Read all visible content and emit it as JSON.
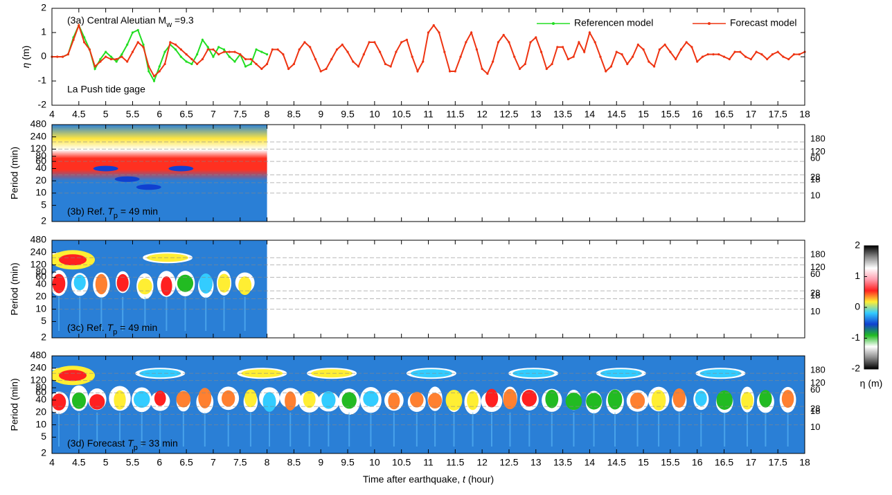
{
  "chart_data": [
    {
      "type": "line",
      "annotation_parts": [
        "(3a) Central Aleutian  M",
        "w",
        " =9.3"
      ],
      "annotation2": "La Push tide gage",
      "ylabel_parts": [
        "η",
        " (m)"
      ],
      "xlim": [
        4,
        18
      ],
      "xticks": [
        4,
        4.5,
        5,
        5.5,
        6,
        6.5,
        7,
        7.5,
        8,
        8.5,
        9,
        9.5,
        10,
        10.5,
        11,
        11.5,
        12,
        12.5,
        13,
        13.5,
        14,
        14.5,
        15,
        15.5,
        16,
        16.5,
        17,
        17.5,
        18
      ],
      "show_xtick_labels": true,
      "ylim": [
        -2,
        2
      ],
      "yticks": [
        -2,
        -1,
        0,
        1,
        2
      ],
      "legend": "upper right",
      "series": [
        {
          "name": "Referencen model",
          "color": "#22dd22",
          "x": [
            4,
            4.1,
            4.2,
            4.3,
            4.4,
            4.5,
            4.6,
            4.7,
            4.8,
            4.9,
            5,
            5.1,
            5.2,
            5.3,
            5.4,
            5.5,
            5.6,
            5.7,
            5.8,
            5.9,
            6,
            6.1,
            6.2,
            6.3,
            6.4,
            6.5,
            6.6,
            6.7,
            6.8,
            6.9,
            7,
            7.1,
            7.2,
            7.3,
            7.4,
            7.5,
            7.6,
            7.7,
            7.8,
            7.9,
            8
          ],
          "values": [
            0,
            0,
            0,
            0.1,
            0.8,
            1.3,
            0.8,
            0.3,
            -0.5,
            -0.1,
            0.2,
            0,
            -0.2,
            0.1,
            0.5,
            1,
            1.1,
            0.5,
            -0.6,
            -1,
            -0.4,
            0.2,
            0.5,
            0.3,
            0,
            -0.2,
            -0.3,
            0.1,
            0.7,
            0.4,
            0,
            0.4,
            0.3,
            0,
            -0.2,
            0.1,
            -0.4,
            -0.3,
            0.3,
            0.2,
            0.1
          ]
        },
        {
          "name": "Forecast model",
          "color": "#ee3311",
          "x": [
            4,
            4.1,
            4.2,
            4.3,
            4.4,
            4.5,
            4.6,
            4.7,
            4.8,
            4.9,
            5,
            5.1,
            5.2,
            5.3,
            5.4,
            5.5,
            5.6,
            5.7,
            5.8,
            5.9,
            6,
            6.1,
            6.2,
            6.3,
            6.4,
            6.5,
            6.6,
            6.7,
            6.8,
            6.9,
            7,
            7.1,
            7.2,
            7.3,
            7.4,
            7.5,
            7.6,
            7.7,
            7.8,
            7.9,
            8,
            8.1,
            8.2,
            8.3,
            8.4,
            8.5,
            8.6,
            8.7,
            8.8,
            8.9,
            9,
            9.1,
            9.2,
            9.3,
            9.4,
            9.5,
            9.6,
            9.7,
            9.8,
            9.9,
            10,
            10.1,
            10.2,
            10.3,
            10.4,
            10.5,
            10.6,
            10.7,
            10.8,
            10.9,
            11,
            11.1,
            11.2,
            11.3,
            11.4,
            11.5,
            11.6,
            11.7,
            11.8,
            11.9,
            12,
            12.1,
            12.2,
            12.3,
            12.4,
            12.5,
            12.6,
            12.7,
            12.8,
            12.9,
            13,
            13.1,
            13.2,
            13.3,
            13.4,
            13.5,
            13.6,
            13.7,
            13.8,
            13.9,
            14,
            14.1,
            14.2,
            14.3,
            14.4,
            14.5,
            14.6,
            14.7,
            14.8,
            14.9,
            15,
            15.1,
            15.2,
            15.3,
            15.4,
            15.5,
            15.6,
            15.7,
            15.8,
            15.9,
            16,
            16.1,
            16.2,
            16.3,
            16.4,
            16.5,
            16.6,
            16.7,
            16.8,
            16.9,
            17,
            17.1,
            17.2,
            17.3,
            17.4,
            17.5,
            17.6,
            17.7,
            17.8,
            17.9,
            18
          ],
          "values": [
            0,
            0,
            0,
            0.1,
            0.7,
            1.3,
            0.6,
            0.3,
            -0.4,
            -0.2,
            0,
            -0.1,
            -0.1,
            0,
            -0.2,
            0.2,
            0.6,
            0.4,
            -0.4,
            -0.8,
            -0.6,
            -0.3,
            0.6,
            0.5,
            0.3,
            0.1,
            -0.1,
            -0.3,
            -0.1,
            0.3,
            0.3,
            0.1,
            0.2,
            0.2,
            0.2,
            0.1,
            -0.1,
            -0.1,
            -0.3,
            -0.5,
            -0.3,
            0.3,
            0.3,
            0.1,
            -0.5,
            -0.3,
            0.3,
            0.6,
            0.4,
            -0.1,
            -0.6,
            -0.5,
            -0.1,
            0.3,
            0.5,
            0.2,
            -0.2,
            -0.4,
            0.1,
            0.6,
            0.6,
            0.2,
            -0.3,
            -0.4,
            0.2,
            0.6,
            0.7,
            0,
            -0.6,
            -0.2,
            1,
            1.3,
            1,
            0.2,
            -0.6,
            -0.6,
            0,
            0.6,
            1,
            0.3,
            -0.5,
            -0.7,
            -0.2,
            0.6,
            0.9,
            0.6,
            0,
            -0.5,
            -0.3,
            0.6,
            0.8,
            0.2,
            -0.5,
            -0.3,
            0.4,
            0.4,
            -0.1,
            0,
            0.6,
            0.2,
            1,
            0.6,
            0,
            -0.6,
            -0.4,
            0.2,
            0.1,
            -0.3,
            0,
            0.5,
            0.3,
            -0.2,
            -0.4,
            0.3,
            0.5,
            0.2,
            -0.1,
            0.3,
            0.6,
            0.4,
            -0.2,
            0,
            0.1,
            0.1,
            0.1,
            0,
            -0.1,
            0.2,
            0.2,
            0,
            -0.1,
            0.2,
            0.1,
            -0.1,
            0.1,
            0.2,
            0,
            -0.1,
            0.1,
            0.1,
            0.2
          ]
        }
      ]
    },
    {
      "type": "wavelet",
      "annotation_parts": [
        "(3b) Ref. ",
        "T",
        "p",
        " =  49 min"
      ],
      "ylabel": "Period (min)",
      "log_y": true,
      "ylim": [
        2,
        480
      ],
      "yticks": [
        2,
        5,
        10,
        20,
        40,
        60,
        80,
        120,
        240,
        480
      ],
      "reference_periods": [
        10,
        18,
        28,
        60,
        120,
        180
      ],
      "xlim": [
        4,
        18
      ],
      "data_xlim": [
        4,
        8
      ],
      "xticks": [
        4,
        4.5,
        5,
        5.5,
        6,
        6.5,
        7,
        7.5,
        8,
        8.5,
        9,
        9.5,
        10,
        10.5,
        11,
        11.5,
        12,
        12.5,
        13,
        13.5,
        14,
        14.5,
        15,
        15.5,
        16,
        16.5,
        17,
        17.5,
        18
      ],
      "show_xtick_labels": false,
      "style": "smooth"
    },
    {
      "type": "wavelet",
      "annotation_parts": [
        "(3c) Ref. ",
        "T",
        "p",
        " =  49 min"
      ],
      "ylabel": "Period (min)",
      "log_y": true,
      "ylim": [
        2,
        480
      ],
      "yticks": [
        2,
        5,
        10,
        20,
        40,
        60,
        80,
        120,
        240,
        480
      ],
      "reference_periods": [
        10,
        18,
        28,
        60,
        120,
        180
      ],
      "xlim": [
        4,
        18
      ],
      "data_xlim": [
        4,
        8
      ],
      "xticks": [
        4,
        4.5,
        5,
        5.5,
        6,
        6.5,
        7,
        7.5,
        8,
        8.5,
        9,
        9.5,
        10,
        10.5,
        11,
        11.5,
        12,
        12.5,
        13,
        13.5,
        14,
        14.5,
        15,
        15.5,
        16,
        16.5,
        17,
        17.5,
        18
      ],
      "show_xtick_labels": false,
      "style": "oscillating"
    },
    {
      "type": "wavelet",
      "annotation_parts": [
        "(3d) Forecast  ",
        "T",
        "p",
        " =  33 min"
      ],
      "ylabel": "Period (min)",
      "log_y": true,
      "ylim": [
        2,
        480
      ],
      "yticks": [
        2,
        5,
        10,
        20,
        40,
        60,
        80,
        120,
        240,
        480
      ],
      "reference_periods": [
        10,
        18,
        28,
        60,
        120,
        180
      ],
      "xlim": [
        4,
        18
      ],
      "data_xlim": [
        4,
        18
      ],
      "xticks": [
        4,
        4.5,
        5,
        5.5,
        6,
        6.5,
        7,
        7.5,
        8,
        8.5,
        9,
        9.5,
        10,
        10.5,
        11,
        11.5,
        12,
        12.5,
        13,
        13.5,
        14,
        14.5,
        15,
        15.5,
        16,
        16.5,
        17,
        17.5,
        18
      ],
      "show_xtick_labels": true,
      "style": "oscillating",
      "xlabel_parts": [
        "Time after earthquake,   ",
        "t",
        " (hour)"
      ]
    },
    {
      "type": "colorbar",
      "label": "η (m)",
      "ylim": [
        -2,
        2
      ],
      "yticks": [
        -2,
        -1,
        0,
        1,
        2
      ],
      "colormap": [
        "#000000",
        "#8a8a8a",
        "#ffffff",
        "#ff9fb0",
        "#ff2020",
        "#ffee33",
        "#33ccff",
        "#1040d0",
        "#22bb22",
        "#ffffff",
        "#8a8a8a",
        "#000000"
      ]
    }
  ]
}
